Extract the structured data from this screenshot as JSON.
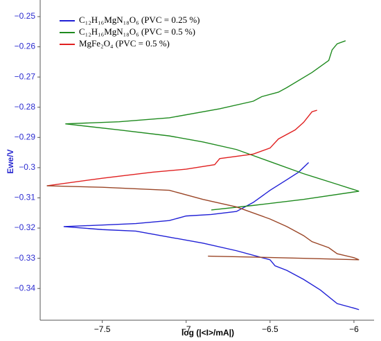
{
  "chart_data": {
    "type": "line",
    "xlabel": "log (|<I>/mA|)",
    "ylabel": "Ewe/V",
    "xlim": [
      -7.87,
      -5.88
    ],
    "ylim": [
      -0.3505,
      -0.2445
    ],
    "xticks": [
      {
        "value": -7.5,
        "label": "−7.5"
      },
      {
        "value": -7,
        "label": "−7"
      },
      {
        "value": -6.5,
        "label": "−6.5"
      },
      {
        "value": -6,
        "label": "−6"
      }
    ],
    "yticks": [
      {
        "value": -0.25,
        "label": "−0.25"
      },
      {
        "value": -0.26,
        "label": "−0.26"
      },
      {
        "value": -0.27,
        "label": "−0.27"
      },
      {
        "value": -0.28,
        "label": "−0.28"
      },
      {
        "value": -0.29,
        "label": "−0.29"
      },
      {
        "value": -0.3,
        "label": "−0.3"
      },
      {
        "value": -0.31,
        "label": "−0.31"
      },
      {
        "value": -0.32,
        "label": "−0.32"
      },
      {
        "value": -0.33,
        "label": "−0.33"
      },
      {
        "value": -0.34,
        "label": "−0.34"
      }
    ],
    "legend": "upper left",
    "series": [
      {
        "name": "C₁₂H₁₆MgN₁₈O₆ (PVC = 0.25 %)",
        "color": "#1f1fd6",
        "x": [
          -6.27,
          -6.33,
          -6.4,
          -6.5,
          -6.6,
          -6.7,
          -6.85,
          -7.0,
          -7.1,
          -7.3,
          -7.5,
          -7.73,
          -7.5,
          -7.3,
          -7.1,
          -6.9,
          -6.7,
          -6.5,
          -6.47,
          -6.4,
          -6.3,
          -6.2,
          -6.1,
          -6.0,
          -5.97
        ],
        "values": [
          -0.2983,
          -0.3015,
          -0.304,
          -0.3075,
          -0.3115,
          -0.3145,
          -0.3155,
          -0.316,
          -0.3175,
          -0.3185,
          -0.319,
          -0.3195,
          -0.3205,
          -0.321,
          -0.323,
          -0.325,
          -0.3275,
          -0.3305,
          -0.3325,
          -0.334,
          -0.337,
          -0.3405,
          -0.345,
          -0.3465,
          -0.347
        ]
      },
      {
        "name": "C₁₂H₁₆MgN₁₈O₆ (PVC = 0.5 %)",
        "color": "#1e8a1e",
        "x": [
          -6.05,
          -6.1,
          -6.13,
          -6.15,
          -6.25,
          -6.4,
          -6.45,
          -6.55,
          -6.6,
          -6.8,
          -7.1,
          -7.4,
          -7.72,
          -7.4,
          -7.1,
          -6.9,
          -6.7,
          -6.5,
          -6.3,
          -6.1,
          -5.97,
          -6.3,
          -6.6,
          -6.85
        ],
        "values": [
          -0.258,
          -0.259,
          -0.261,
          -0.2645,
          -0.2685,
          -0.2735,
          -0.275,
          -0.2765,
          -0.278,
          -0.2805,
          -0.2835,
          -0.2848,
          -0.2855,
          -0.2875,
          -0.2895,
          -0.2915,
          -0.294,
          -0.298,
          -0.302,
          -0.3055,
          -0.3078,
          -0.3105,
          -0.3125,
          -0.314
        ]
      },
      {
        "name": "MgFe₂O₄ (PVC = 0.5 %)",
        "color": "#e02020",
        "x": [
          -7.83,
          -7.5,
          -7.2,
          -7.0,
          -6.83,
          -6.8,
          -6.6,
          -6.5,
          -6.45,
          -6.35,
          -6.3,
          -6.25,
          -6.22
        ],
        "values": [
          -0.306,
          -0.3035,
          -0.3015,
          -0.3005,
          -0.299,
          -0.297,
          -0.2955,
          -0.2935,
          -0.2905,
          -0.2875,
          -0.285,
          -0.2815,
          -0.281
        ]
      },
      {
        "color": "#9a4526",
        "x": [
          -7.83,
          -7.5,
          -7.1,
          -6.9,
          -6.7,
          -6.5,
          -6.4,
          -6.3,
          -6.25,
          -6.15,
          -6.1,
          -6.0,
          -5.97,
          -6.3,
          -6.6,
          -6.87
        ],
        "values": [
          -0.306,
          -0.3065,
          -0.3075,
          -0.3105,
          -0.313,
          -0.317,
          -0.3195,
          -0.3225,
          -0.3245,
          -0.3265,
          -0.3285,
          -0.3298,
          -0.3305,
          -0.33,
          -0.3296,
          -0.3293
        ]
      }
    ]
  }
}
